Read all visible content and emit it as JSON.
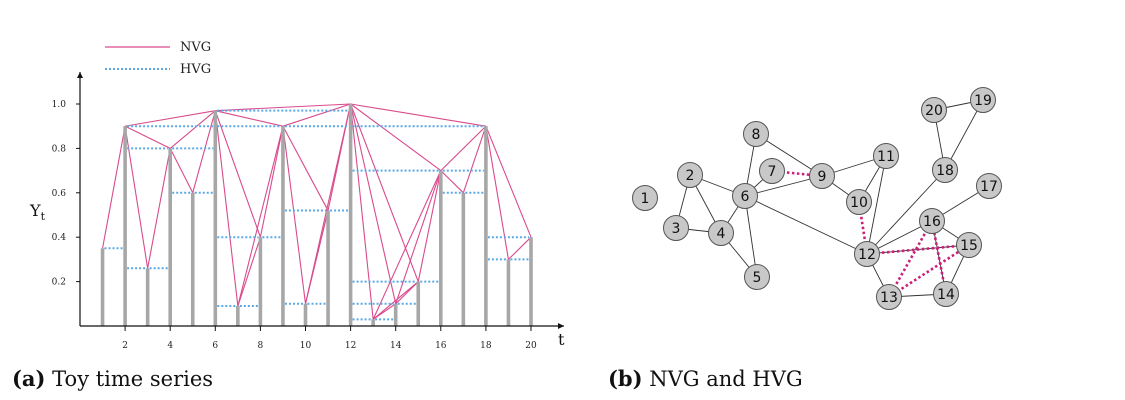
{
  "colors": {
    "nvg": "#d94a8c",
    "hvg": "#5aa9e6",
    "bar": "#a7a7a7",
    "node_fill": "#c8c8c8",
    "node_stroke": "#555555",
    "edge": "#333333",
    "dotted_edge": "#cc1f7a"
  },
  "captions": {
    "a_tag": "(a)",
    "a_text": "Toy time series",
    "b_tag": "(b)",
    "b_text": "NVG and HVG"
  },
  "chart_data": [
    {
      "type": "bar",
      "x": [
        1,
        2,
        3,
        4,
        5,
        6,
        7,
        8,
        9,
        10,
        11,
        12,
        13,
        14,
        15,
        16,
        17,
        18,
        19,
        20
      ],
      "values": [
        0.35,
        0.9,
        0.26,
        0.8,
        0.6,
        0.97,
        0.09,
        0.4,
        0.9,
        0.1,
        0.52,
        1.0,
        0.03,
        0.1,
        0.2,
        0.7,
        0.6,
        0.9,
        0.3,
        0.4
      ],
      "xlabel": "t",
      "ylabel": "Y",
      "ylabel_sub": "t",
      "xticks": [
        2,
        4,
        6,
        8,
        10,
        12,
        14,
        16,
        18,
        20
      ],
      "yticks": [
        0.2,
        0.4,
        0.6,
        0.8,
        1.0
      ],
      "ytick_labels": [
        "0.2",
        "0.4",
        "0.6",
        "0.8",
        "1.0"
      ],
      "xlim": [
        0,
        21
      ],
      "ylim": [
        0,
        1.05
      ],
      "legend": [
        "NVG",
        "HVG"
      ],
      "legend_position": "top-left"
    },
    {
      "type": "network",
      "nodes": [
        "1",
        "2",
        "3",
        "4",
        "5",
        "6",
        "7",
        "8",
        "9",
        "10",
        "11",
        "12",
        "13",
        "14",
        "15",
        "16",
        "17",
        "18",
        "19",
        "20"
      ],
      "edges": [
        [
          "2",
          "6"
        ],
        [
          "2",
          "3"
        ],
        [
          "2",
          "4"
        ],
        [
          "3",
          "4"
        ],
        [
          "4",
          "6"
        ],
        [
          "4",
          "5"
        ],
        [
          "5",
          "6"
        ],
        [
          "6",
          "8"
        ],
        [
          "6",
          "7"
        ],
        [
          "6",
          "9"
        ],
        [
          "6",
          "12"
        ],
        [
          "8",
          "9"
        ],
        [
          "9",
          "10"
        ],
        [
          "9",
          "11"
        ],
        [
          "10",
          "11"
        ],
        [
          "11",
          "12"
        ],
        [
          "12",
          "18"
        ],
        [
          "12",
          "16"
        ],
        [
          "12",
          "13"
        ],
        [
          "12",
          "15"
        ],
        [
          "13",
          "14"
        ],
        [
          "14",
          "15"
        ],
        [
          "14",
          "16"
        ],
        [
          "15",
          "16"
        ],
        [
          "16",
          "17"
        ],
        [
          "18",
          "20"
        ],
        [
          "18",
          "19"
        ],
        [
          "19",
          "20"
        ]
      ],
      "dotted_edges": [
        [
          "7",
          "9"
        ],
        [
          "10",
          "12"
        ],
        [
          "12",
          "15"
        ],
        [
          "13",
          "16"
        ],
        [
          "13",
          "15"
        ],
        [
          "14",
          "16"
        ]
      ]
    }
  ]
}
